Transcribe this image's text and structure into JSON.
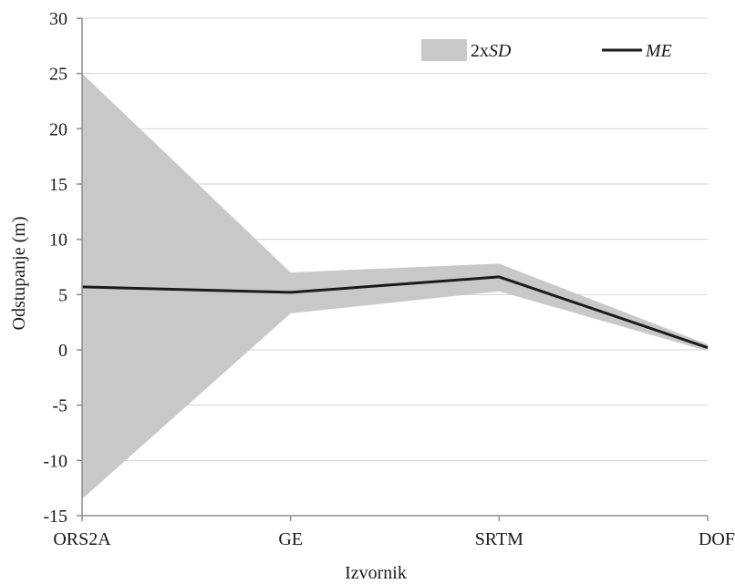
{
  "chart_data": {
    "type": "area",
    "categories": [
      "ORS2A",
      "GE",
      "SRTM",
      "DOF"
    ],
    "xlabel": "Izvornik",
    "ylabel": "Odstupanje (m)",
    "ylim": [
      -15,
      30
    ],
    "yticks": [
      -15,
      -10,
      -5,
      0,
      5,
      10,
      15,
      20,
      25,
      30
    ],
    "grid": true,
    "legend_position": "top-right",
    "series": [
      {
        "kind": "band",
        "legend_prefix": "2x",
        "legend_italic": "SD",
        "upper": [
          25.0,
          7.0,
          7.8,
          0.5
        ],
        "lower": [
          -13.5,
          3.3,
          5.3,
          -0.1
        ],
        "color": "#c8c8c8"
      },
      {
        "kind": "line",
        "legend_prefix": "",
        "legend_italic": "ME",
        "values": [
          5.7,
          5.2,
          6.6,
          0.2
        ],
        "color": "#1a1a1a"
      }
    ]
  }
}
